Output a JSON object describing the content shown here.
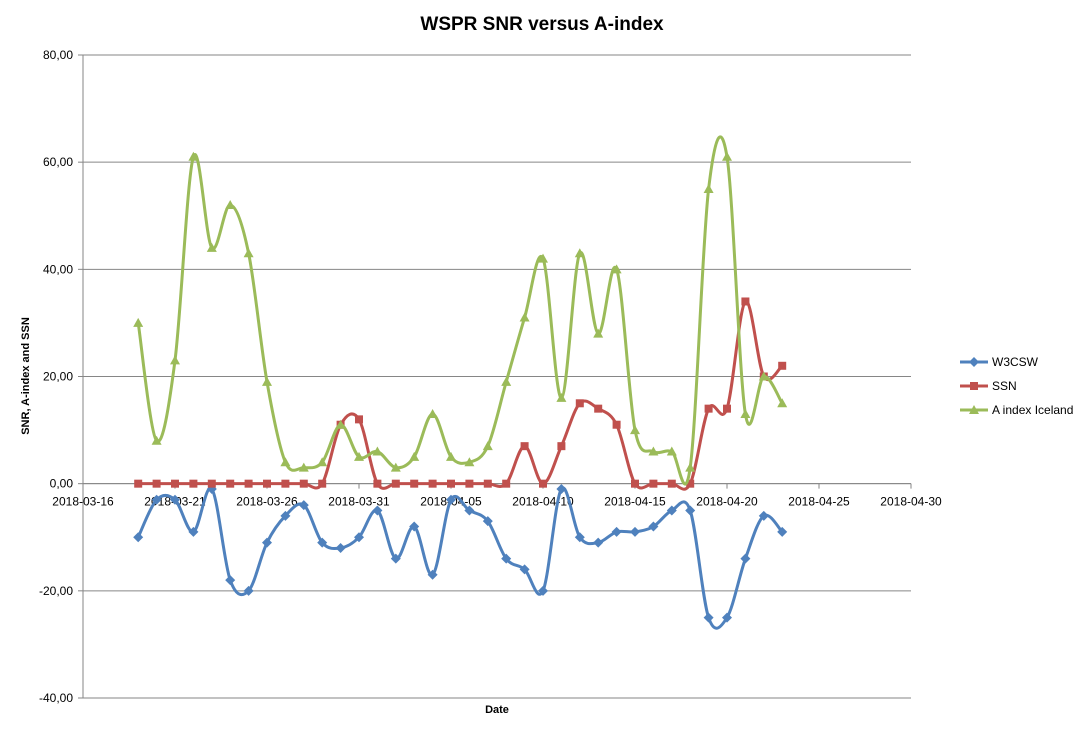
{
  "chart_data": {
    "type": "line",
    "title": "WSPR SNR versus A-index",
    "xlabel": "Date",
    "ylabel": "SNR, A-index and SSN",
    "xlim": [
      "2018-03-16",
      "2018-04-30"
    ],
    "ylim": [
      -40,
      80
    ],
    "x_ticks": [
      "2018-03-16",
      "2018-03-21",
      "2018-03-26",
      "2018-03-31",
      "2018-04-05",
      "2018-04-10",
      "2018-04-15",
      "2018-04-20",
      "2018-04-25",
      "2018-04-30"
    ],
    "y_ticks": [
      "-40,00",
      "-20,00",
      "0,00",
      "20,00",
      "40,00",
      "60,00",
      "80,00"
    ],
    "grid": "horizontal",
    "legend_position": "right",
    "smoothed": true,
    "x": [
      "2018-03-19",
      "2018-03-20",
      "2018-03-21",
      "2018-03-22",
      "2018-03-23",
      "2018-03-24",
      "2018-03-25",
      "2018-03-26",
      "2018-03-27",
      "2018-03-28",
      "2018-03-29",
      "2018-03-30",
      "2018-03-31",
      "2018-04-01",
      "2018-04-02",
      "2018-04-03",
      "2018-04-04",
      "2018-04-05",
      "2018-04-06",
      "2018-04-07",
      "2018-04-08",
      "2018-04-09",
      "2018-04-10",
      "2018-04-11",
      "2018-04-12",
      "2018-04-13",
      "2018-04-14",
      "2018-04-15",
      "2018-04-16",
      "2018-04-17",
      "2018-04-18",
      "2018-04-19",
      "2018-04-20",
      "2018-04-21",
      "2018-04-22",
      "2018-04-23",
      "2018-04-24"
    ],
    "series": [
      {
        "name": "W3CSW",
        "color": "#4f81bd",
        "marker": "diamond",
        "values": [
          -10,
          -3,
          -3,
          -9,
          -1,
          -18,
          -20,
          -11,
          -6,
          -4,
          -11,
          -12,
          -10,
          -5,
          -14,
          -8,
          -17,
          -3,
          -5,
          -7,
          -14,
          -16,
          -20,
          -1,
          -10,
          -11,
          -9,
          -9,
          -8,
          -5,
          -5,
          -25,
          -25,
          -14,
          -6,
          -9,
          null
        ]
      },
      {
        "name": "SSN",
        "color": "#c0504d",
        "marker": "square",
        "values": [
          0,
          0,
          0,
          0,
          0,
          0,
          0,
          0,
          0,
          0,
          0,
          11,
          12,
          0,
          0,
          0,
          0,
          0,
          0,
          0,
          0,
          7,
          0,
          7,
          15,
          14,
          11,
          0,
          0,
          0,
          0,
          14,
          14,
          34,
          20,
          22,
          null
        ]
      },
      {
        "name": "A index Iceland",
        "color": "#9bbb59",
        "marker": "triangle",
        "values": [
          30,
          8,
          23,
          61,
          44,
          52,
          43,
          19,
          4,
          3,
          4,
          11,
          5,
          6,
          3,
          5,
          13,
          5,
          4,
          7,
          19,
          31,
          42,
          16,
          43,
          28,
          40,
          10,
          6,
          6,
          3,
          55,
          61,
          13,
          20,
          15,
          null
        ]
      }
    ]
  }
}
